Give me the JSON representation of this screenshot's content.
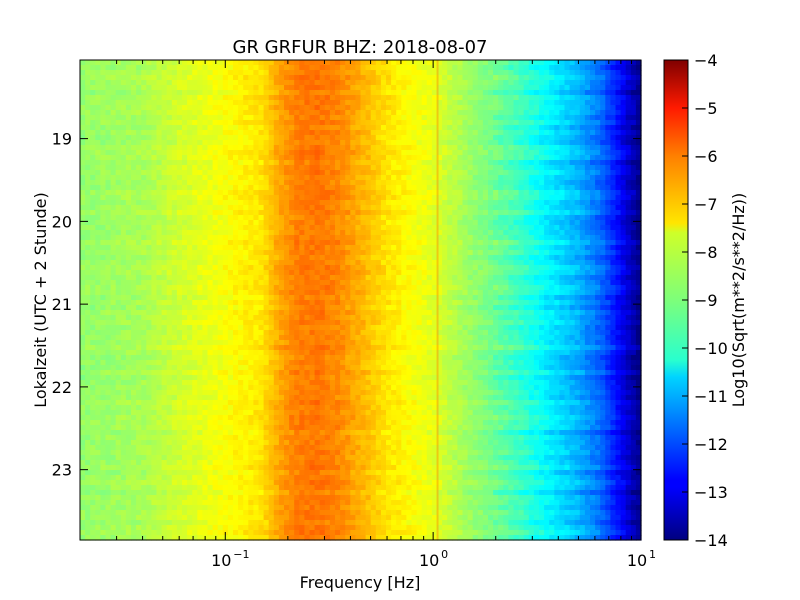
{
  "chart_data": {
    "type": "heatmap",
    "title": "GR GRFUR BHZ: 2018-08-07",
    "xlabel": "Frequency [Hz]",
    "ylabel": "Lokalzeit (UTC + 2 Stunde)",
    "x_scale": "log",
    "xlim": [
      0.02,
      10
    ],
    "x_ticks": [
      {
        "value": 0.1,
        "base": "10",
        "exp": "−1"
      },
      {
        "value": 1,
        "base": "10",
        "exp": "0"
      },
      {
        "value": 10,
        "base": "10",
        "exp": "1"
      }
    ],
    "ylim_hours": [
      18.05,
      23.85
    ],
    "y_inverted": true,
    "y_ticks": [
      "19",
      "20",
      "21",
      "22",
      "23"
    ],
    "colorbar": {
      "label": "Log10(Sqrt(m**2/s**2/Hz))",
      "min": -14,
      "max": -4,
      "ticks": [
        "−4",
        "−5",
        "−6",
        "−7",
        "−8",
        "−9",
        "−10",
        "−11",
        "−12",
        "−13",
        "−14"
      ],
      "colormap": "jet"
    },
    "spectrum_profile": {
      "frequency_hz": [
        0.02,
        0.04,
        0.06,
        0.1,
        0.15,
        0.18,
        0.22,
        0.28,
        0.35,
        0.45,
        0.6,
        0.8,
        1.0,
        1.3,
        1.8,
        2.5,
        3.5,
        5.0,
        6.5,
        8.0,
        10.0
      ],
      "level": [
        -8.8,
        -8.6,
        -8.2,
        -7.8,
        -7.5,
        -6.9,
        -6.5,
        -6.4,
        -6.6,
        -7.0,
        -7.5,
        -7.8,
        -8.0,
        -8.5,
        -9.0,
        -9.6,
        -10.3,
        -11.0,
        -11.8,
        -12.8,
        -14.0
      ]
    },
    "line_at_frequency_hz": 1.05
  }
}
